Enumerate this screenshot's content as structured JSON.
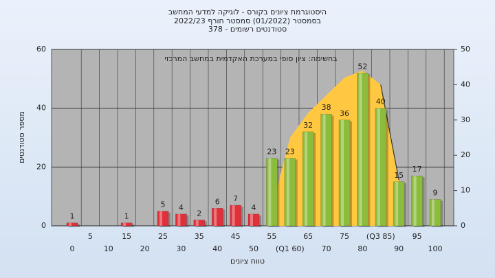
{
  "chart_data": {
    "type": "bar",
    "title": "היסטוגרמת ציונים בקורס - לוגיקה למדעי המחשב",
    "subtitle": "בסמסטר  (01/2022)  סמסטר חורף 2022/23",
    "subtitle2": "סטודנטים רשומים - 378",
    "annotation": "בחשימה: ציון סופי במערכת האקדמית במחשב המרכזי",
    "ylabel": "מספר סטודנטים",
    "xlabel": "טווח ציונים",
    "categories": [
      "0",
      "5",
      "10",
      "15",
      "20",
      "25",
      "30",
      "35",
      "40",
      "45",
      "50",
      "55",
      "(Q1 60)",
      "65",
      "70",
      "75",
      "80",
      "(Q3 85)",
      "90",
      "95",
      "100"
    ],
    "series": [
      {
        "values": [
          1,
          0,
          0,
          1,
          0,
          5,
          4,
          2,
          6,
          7,
          4,
          23,
          23,
          32,
          38,
          36,
          52,
          40,
          15,
          17,
          9
        ],
        "colors": [
          "#e0303a",
          "#e0303a",
          "#e0303a",
          "#e0303a",
          "#e0303a",
          "#e0303a",
          "#e0303a",
          "#e0303a",
          "#e0303a",
          "#e0303a",
          "#e0303a",
          "#8cbc3c",
          "#8cbc3c",
          "#8cbc3c",
          "#8cbc3c",
          "#8cbc3c",
          "#8cbc3c",
          "#8cbc3c",
          "#8cbc3c",
          "#8cbc3c",
          "#8cbc3c"
        ]
      },
      {
        "type": "area",
        "axis": "y2",
        "color": "#ffc840",
        "values": [
          null,
          null,
          null,
          null,
          null,
          null,
          null,
          null,
          null,
          null,
          null,
          5,
          25,
          32,
          37,
          42,
          44,
          40,
          13,
          null,
          null
        ]
      }
    ],
    "ylim": [
      0,
      60
    ],
    "yticks": [
      0,
      20,
      40,
      60
    ],
    "y2lim": [
      0,
      50
    ],
    "y2ticks": [
      0,
      10,
      20,
      30,
      40,
      50
    ],
    "grid": true
  }
}
